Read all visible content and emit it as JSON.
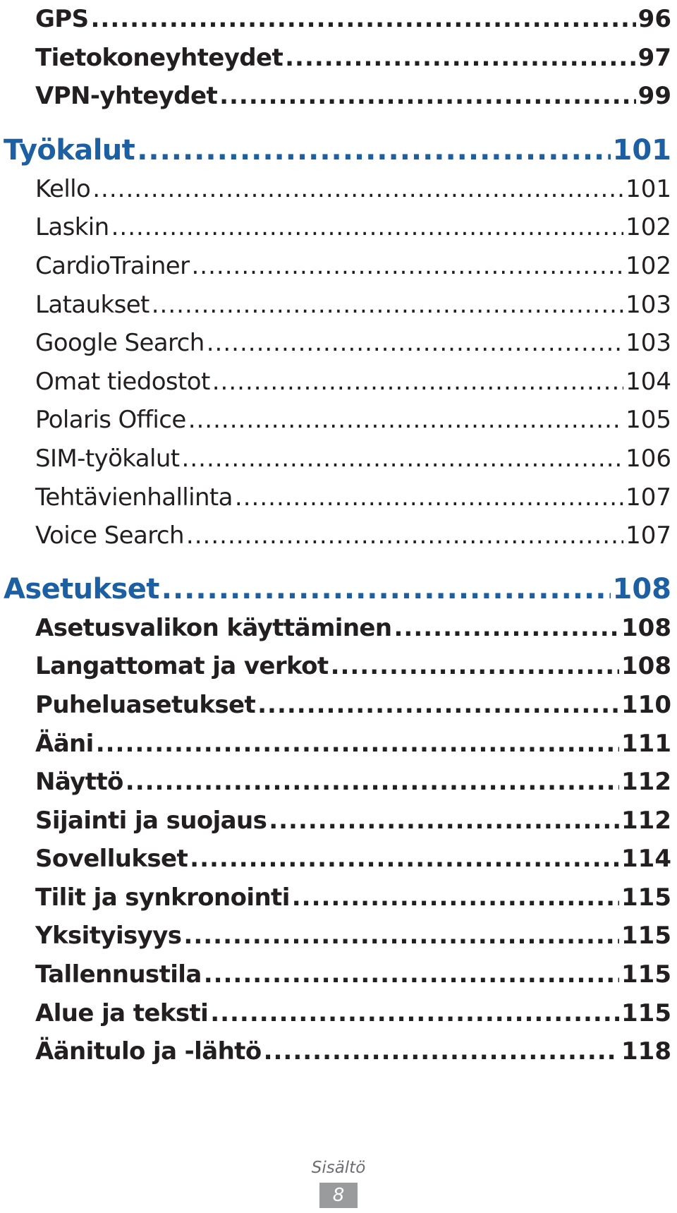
{
  "toc": {
    "head": [
      {
        "title": "GPS",
        "page": "96"
      },
      {
        "title": "Tietokoneyhteydet",
        "page": "97"
      },
      {
        "title": "VPN-yhteydet",
        "page": "99"
      }
    ],
    "sections": [
      {
        "title": "Työkalut",
        "page": "101",
        "items": [
          {
            "title": "Kello",
            "page": "101"
          },
          {
            "title": "Laskin",
            "page": "102"
          },
          {
            "title": "CardioTrainer",
            "page": "102"
          },
          {
            "title": "Lataukset",
            "page": "103"
          },
          {
            "title": "Google Search",
            "page": "103"
          },
          {
            "title": "Omat tiedostot",
            "page": "104"
          },
          {
            "title": "Polaris Office",
            "page": "105"
          },
          {
            "title": "SIM-työkalut",
            "page": "106"
          },
          {
            "title": "Tehtävienhallinta",
            "page": "107"
          },
          {
            "title": "Voice Search",
            "page": "107"
          }
        ]
      },
      {
        "title": "Asetukset",
        "page": "108",
        "items": [
          {
            "title": "Asetusvalikon käyttäminen",
            "page": "108"
          },
          {
            "title": "Langattomat ja verkot",
            "page": "108"
          },
          {
            "title": "Puheluasetukset",
            "page": "110"
          },
          {
            "title": "Ääni",
            "page": "111"
          },
          {
            "title": "Näyttö",
            "page": "112"
          },
          {
            "title": "Sijainti ja suojaus",
            "page": "112"
          },
          {
            "title": "Sovellukset",
            "page": "114"
          },
          {
            "title": "Tilit ja synkronointi",
            "page": "115"
          },
          {
            "title": "Yksityisyys",
            "page": "115"
          },
          {
            "title": "Tallennustila",
            "page": "115"
          },
          {
            "title": "Alue ja teksti",
            "page": "115"
          },
          {
            "title": "Äänitulo ja -lähtö",
            "page": "118"
          }
        ]
      }
    ]
  },
  "footer": {
    "label": "Sisältö",
    "page_number": "8"
  },
  "colors": {
    "section_heading": "#1d5fa3",
    "body_text": "#231f20",
    "footer_badge": "#9a9b9d"
  }
}
